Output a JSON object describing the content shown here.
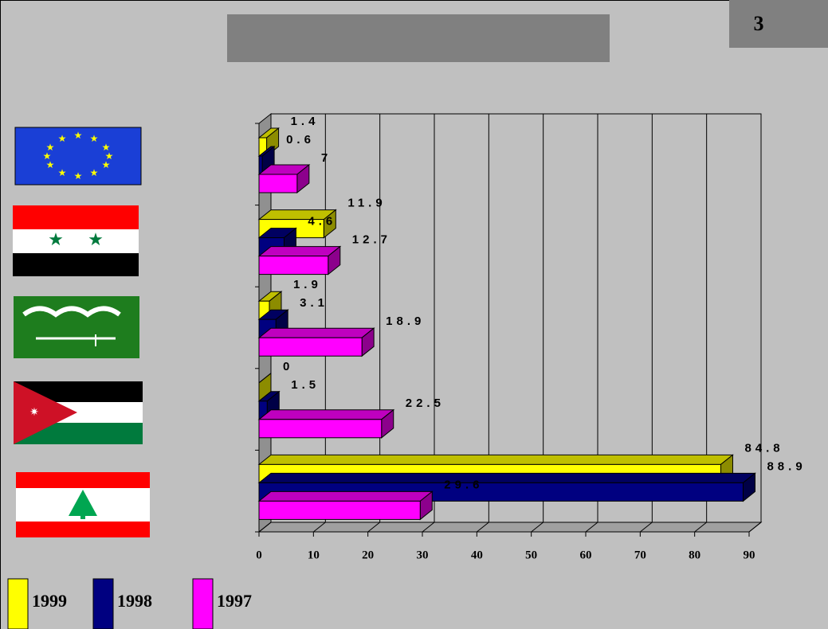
{
  "page_number": "3",
  "chart_data": {
    "type": "bar3d_horizontal",
    "categories": [
      null,
      null,
      null,
      null,
      null
    ],
    "series": [
      {
        "name": "1999",
        "color": "#ffff00",
        "values": [
          1.4,
          11.9,
          1.9,
          0,
          84.8
        ]
      },
      {
        "name": "1998",
        "color": "#000080",
        "values": [
          0.6,
          4.6,
          3.1,
          1.5,
          88.9
        ]
      },
      {
        "name": "1997",
        "color": "#ff00ff",
        "values": [
          7,
          12.7,
          18.9,
          22.5,
          29.6
        ]
      }
    ],
    "xlim": [
      0,
      90
    ],
    "xticks": [
      0,
      10,
      20,
      30,
      40,
      50,
      60,
      70,
      80,
      90
    ],
    "grid": true,
    "legend": "bottom-left"
  }
}
